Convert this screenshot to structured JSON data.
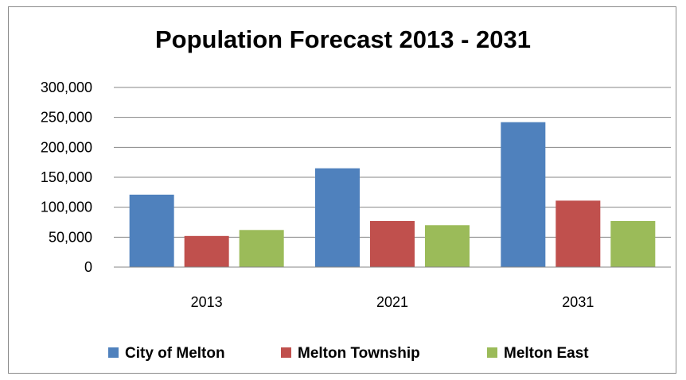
{
  "chart_data": {
    "type": "bar",
    "title": "Population Forecast 2013 - 2031",
    "xlabel": "",
    "ylabel": "",
    "categories": [
      "2013",
      "2021",
      "2031"
    ],
    "series": [
      {
        "name": "City of Melton",
        "color": "#4f81bd",
        "values": [
          121000,
          165000,
          242000
        ]
      },
      {
        "name": "Melton Township",
        "color": "#c0504d",
        "values": [
          52000,
          77000,
          111000
        ]
      },
      {
        "name": "Melton East",
        "color": "#9bbb59",
        "values": [
          62000,
          70000,
          77000
        ]
      }
    ],
    "ylim": [
      0,
      300000
    ],
    "yticks": [
      "0",
      "50,000",
      "100,000",
      "150,000",
      "200,000",
      "250,000",
      "300,000"
    ],
    "grid": true,
    "legend_position": "bottom"
  }
}
